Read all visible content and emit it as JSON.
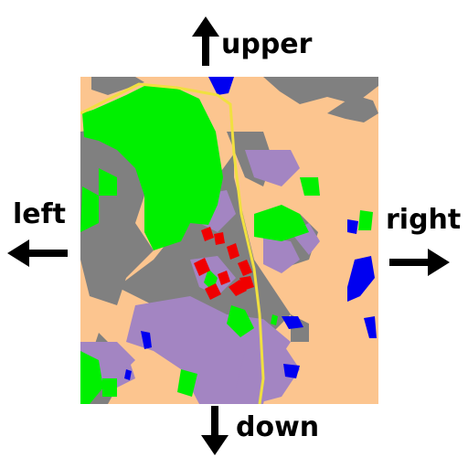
{
  "directions": {
    "up": "upper",
    "down": "down",
    "left": "left",
    "right": "right"
  },
  "map": {
    "colors": {
      "ground": "#fcc58f",
      "vegetation": "#00f000",
      "built_up": "#808080",
      "residential": "#a385c2",
      "water": "#0000f0",
      "buildings": "#f00000",
      "road": "#f0e040"
    }
  }
}
